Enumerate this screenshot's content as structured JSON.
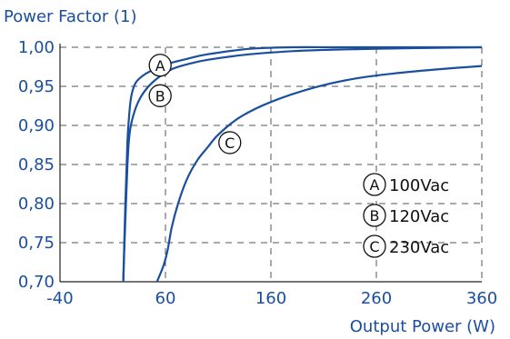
{
  "chart_data": {
    "type": "line",
    "ylabel": "Power Factor (1)",
    "xlabel": "Output Power (W)",
    "xlim": [
      -40,
      360
    ],
    "ylim": [
      0.7,
      1.0
    ],
    "x_ticks": [
      {
        "value": -40,
        "label": "-40"
      },
      {
        "value": 60,
        "label": "60"
      },
      {
        "value": 160,
        "label": "160"
      },
      {
        "value": 260,
        "label": "260"
      },
      {
        "value": 360,
        "label": "360"
      }
    ],
    "y_ticks": [
      {
        "value": 0.7,
        "label": "0,70"
      },
      {
        "value": 0.75,
        "label": "0,75"
      },
      {
        "value": 0.8,
        "label": "0,80"
      },
      {
        "value": 0.85,
        "label": "0,85"
      },
      {
        "value": 0.9,
        "label": "0,90"
      },
      {
        "value": 0.95,
        "label": "0,95"
      },
      {
        "value": 1.0,
        "label": "1,00"
      }
    ],
    "grid": true,
    "line_color": "#1a4fa0",
    "legend_position": "right",
    "series": [
      {
        "marker": "A",
        "name": "100Vac",
        "marker_at": {
          "x": 55,
          "y": 0.977
        },
        "points": [
          [
            20,
            0.7
          ],
          [
            22,
            0.8
          ],
          [
            24,
            0.88
          ],
          [
            26,
            0.92
          ],
          [
            28,
            0.94
          ],
          [
            32,
            0.955
          ],
          [
            40,
            0.965
          ],
          [
            50,
            0.972
          ],
          [
            60,
            0.978
          ],
          [
            80,
            0.985
          ],
          [
            100,
            0.991
          ],
          [
            140,
            0.998
          ],
          [
            180,
            1.0
          ],
          [
            220,
            1.0
          ],
          [
            260,
            1.0
          ],
          [
            300,
            1.0
          ],
          [
            360,
            1.0
          ]
        ]
      },
      {
        "marker": "B",
        "name": "120Vac",
        "marker_at": {
          "x": 55,
          "y": 0.938
        },
        "points": [
          [
            20,
            0.7
          ],
          [
            22,
            0.78
          ],
          [
            24,
            0.85
          ],
          [
            26,
            0.89
          ],
          [
            30,
            0.915
          ],
          [
            36,
            0.935
          ],
          [
            44,
            0.95
          ],
          [
            54,
            0.962
          ],
          [
            66,
            0.972
          ],
          [
            80,
            0.978
          ],
          [
            100,
            0.984
          ],
          [
            140,
            0.991
          ],
          [
            180,
            0.995
          ],
          [
            220,
            0.997
          ],
          [
            260,
            0.998
          ],
          [
            300,
            0.999
          ],
          [
            360,
            1.0
          ]
        ]
      },
      {
        "marker": "C",
        "name": "230Vac",
        "marker_at": {
          "x": 121,
          "y": 0.878
        },
        "points": [
          [
            52,
            0.7
          ],
          [
            58,
            0.72
          ],
          [
            62,
            0.74
          ],
          [
            66,
            0.77
          ],
          [
            72,
            0.8
          ],
          [
            80,
            0.83
          ],
          [
            90,
            0.855
          ],
          [
            100,
            0.872
          ],
          [
            110,
            0.888
          ],
          [
            130,
            0.91
          ],
          [
            160,
            0.93
          ],
          [
            200,
            0.948
          ],
          [
            240,
            0.96
          ],
          [
            280,
            0.967
          ],
          [
            320,
            0.972
          ],
          [
            360,
            0.976
          ]
        ]
      }
    ]
  }
}
